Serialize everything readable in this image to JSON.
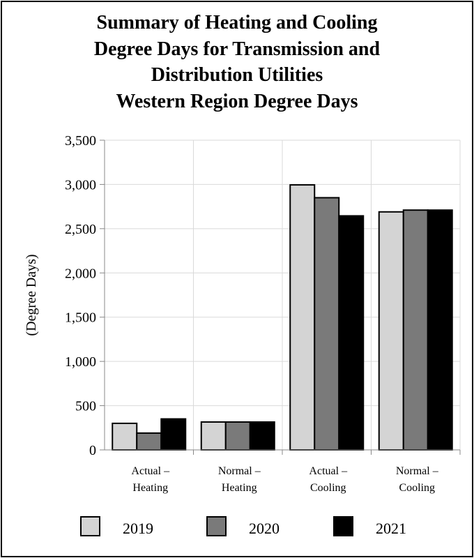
{
  "chart_data": {
    "type": "bar",
    "title_lines": [
      "Summary of Heating and Cooling",
      "Degree Days for Transmission and",
      "Distribution Utilities",
      "Western Region Degree Days"
    ],
    "ylabel": "(Degree Days)",
    "xlabel": "",
    "ylim": [
      0,
      3500
    ],
    "yticks": [
      0,
      500,
      1000,
      1500,
      2000,
      2500,
      3000,
      3500
    ],
    "ytick_labels": [
      "0",
      "500",
      "1,000",
      "1,500",
      "2,000",
      "2,500",
      "3,000",
      "3,500"
    ],
    "grid": true,
    "legend_position": "bottom",
    "categories": [
      [
        "Actual –",
        "Heating"
      ],
      [
        "Normal –",
        "Heating"
      ],
      [
        "Actual –",
        "Cooling"
      ],
      [
        "Normal –",
        "Cooling"
      ]
    ],
    "series": [
      {
        "name": "2019",
        "color": "#d4d4d4",
        "values": [
          300,
          315,
          2995,
          2690
        ]
      },
      {
        "name": "2020",
        "color": "#7a7a7a",
        "values": [
          190,
          315,
          2850,
          2710
        ]
      },
      {
        "name": "2021",
        "color": "#000000",
        "values": [
          350,
          315,
          2645,
          2710
        ]
      }
    ]
  }
}
